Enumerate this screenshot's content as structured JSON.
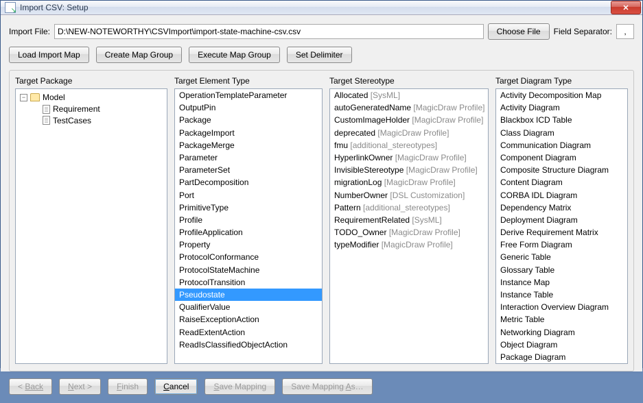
{
  "window": {
    "title": "Import CSV: Setup"
  },
  "fileRow": {
    "label": "Import File:",
    "path": "D:\\NEW-NOTEWORTHY\\CSVImport\\import-state-machine-csv.csv",
    "choose": "Choose File",
    "sepLabel": "Field Separator:",
    "sepValue": ","
  },
  "toolbar": {
    "loadMap": "Load Import Map",
    "createGroup": "Create Map Group",
    "executeGroup": "Execute Map Group",
    "setDelimiter": "Set Delimiter"
  },
  "panels": {
    "package": "Target Package",
    "elementType": "Target Element Type",
    "stereotype": "Target Stereotype",
    "diagramType": "Target Diagram Type"
  },
  "tree": {
    "root": "Model",
    "children": [
      "Requirement",
      "TestCases"
    ]
  },
  "elementTypes": [
    "OperationTemplateParameter",
    "OutputPin",
    "Package",
    "PackageImport",
    "PackageMerge",
    "Parameter",
    "ParameterSet",
    "PartDecomposition",
    "Port",
    "PrimitiveType",
    "Profile",
    "ProfileApplication",
    "Property",
    "ProtocolConformance",
    "ProtocolStateMachine",
    "ProtocolTransition",
    "Pseudostate",
    "QualifierValue",
    "RaiseExceptionAction",
    "ReadExtentAction",
    "ReadIsClassifiedObjectAction"
  ],
  "elementSelected": "Pseudostate",
  "stereotypes": [
    {
      "name": "Allocated",
      "note": "[SysML]"
    },
    {
      "name": "autoGeneratedName",
      "note": "[MagicDraw Profile]"
    },
    {
      "name": "CustomImageHolder",
      "note": "[MagicDraw Profile]"
    },
    {
      "name": "deprecated",
      "note": "[MagicDraw Profile]"
    },
    {
      "name": "fmu",
      "note": "[additional_stereotypes]"
    },
    {
      "name": "HyperlinkOwner",
      "note": "[MagicDraw Profile]"
    },
    {
      "name": "InvisibleStereotype",
      "note": "[MagicDraw Profile]"
    },
    {
      "name": "migrationLog",
      "note": "[MagicDraw Profile]"
    },
    {
      "name": "NumberOwner",
      "note": "[DSL Customization]"
    },
    {
      "name": "Pattern",
      "note": "[additional_stereotypes]"
    },
    {
      "name": "RequirementRelated",
      "note": "[SysML]"
    },
    {
      "name": "TODO_Owner",
      "note": "[MagicDraw Profile]"
    },
    {
      "name": "typeModifier",
      "note": "[MagicDraw Profile]"
    }
  ],
  "diagramTypes": [
    "Activity Decomposition Map",
    "Activity Diagram",
    "Blackbox ICD Table",
    "Class Diagram",
    "Communication Diagram",
    "Component Diagram",
    "Composite Structure Diagram",
    "Content Diagram",
    "CORBA IDL Diagram",
    "Dependency Matrix",
    "Deployment Diagram",
    "Derive Requirement Matrix",
    "Free Form Diagram",
    "Generic Table",
    "Glossary Table",
    "Instance Map",
    "Instance Table",
    "Interaction Overview Diagram",
    "Metric Table",
    "Networking Diagram",
    "Object Diagram",
    "Package Diagram"
  ],
  "footer": {
    "back": "Back",
    "next": "Next >",
    "finish": "Finish",
    "cancel": "Cancel",
    "saveMapping": "Save Mapping",
    "saveMappingAs": "Save Mapping As…"
  }
}
